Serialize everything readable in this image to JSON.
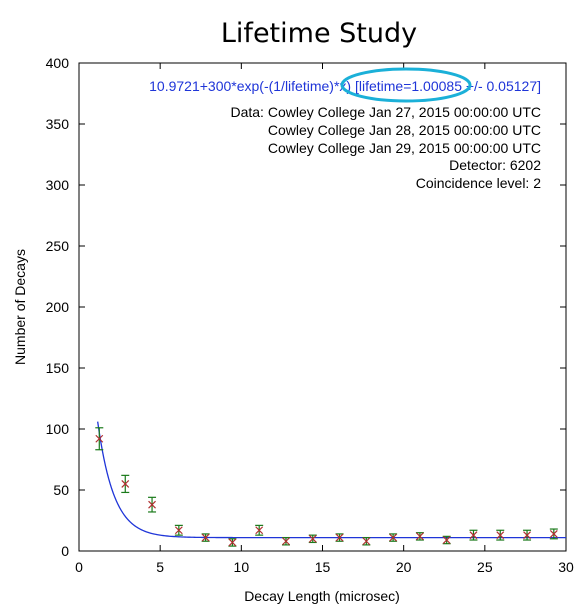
{
  "chart_data": {
    "type": "scatter",
    "title": "Lifetime Study",
    "xlabel": "Decay Length (microsec)",
    "ylabel": "Number of Decays",
    "xlim": [
      0,
      30
    ],
    "ylim": [
      0,
      400
    ],
    "xticks": [
      0,
      5,
      10,
      15,
      20,
      25,
      30
    ],
    "yticks": [
      0,
      50,
      100,
      150,
      200,
      250,
      300,
      350,
      400
    ],
    "grid": false,
    "series": [
      {
        "type": "scatter_errorbar",
        "marker_color": "#b03030",
        "errorbar_color": "#1a7a1a",
        "points": [
          {
            "x": 1.25,
            "y": 92,
            "err": 9
          },
          {
            "x": 2.85,
            "y": 55,
            "err": 7
          },
          {
            "x": 4.5,
            "y": 38,
            "err": 6
          },
          {
            "x": 6.15,
            "y": 17,
            "err": 4
          },
          {
            "x": 7.8,
            "y": 11,
            "err": 3
          },
          {
            "x": 9.45,
            "y": 7,
            "err": 3
          },
          {
            "x": 11.1,
            "y": 17,
            "err": 4
          },
          {
            "x": 12.75,
            "y": 8,
            "err": 3
          },
          {
            "x": 14.4,
            "y": 10,
            "err": 3
          },
          {
            "x": 16.05,
            "y": 11,
            "err": 3
          },
          {
            "x": 17.7,
            "y": 8,
            "err": 3
          },
          {
            "x": 19.35,
            "y": 11,
            "err": 3
          },
          {
            "x": 21.0,
            "y": 12,
            "err": 3
          },
          {
            "x": 22.65,
            "y": 9,
            "err": 3
          },
          {
            "x": 24.3,
            "y": 13,
            "err": 4
          },
          {
            "x": 25.95,
            "y": 13,
            "err": 4
          },
          {
            "x": 27.6,
            "y": 13,
            "err": 4
          },
          {
            "x": 29.25,
            "y": 14,
            "err": 4
          }
        ]
      },
      {
        "type": "function",
        "color": "#1f35d8",
        "baseline": 10.9721,
        "amplitude": 300,
        "lifetime": 1.00085,
        "x_start": 1.15,
        "x_end": 30
      }
    ],
    "fit_label_prefix": "10.9721+300*exp(-(1/lifetime)*x) ",
    "fit_label_highlight": "[lifetime=1.00085 +/- 0.05127]",
    "annotations": [
      "Data: Cowley College Jan 27, 2015 00:00:00 UTC",
      "Cowley College Jan 28, 2015 00:00:00 UTC",
      "Cowley College Jan 29, 2015 00:00:00 UTC",
      "Detector: 6202",
      "Coincidence level: 2"
    ],
    "highlight_color": "#1bb0d8"
  }
}
